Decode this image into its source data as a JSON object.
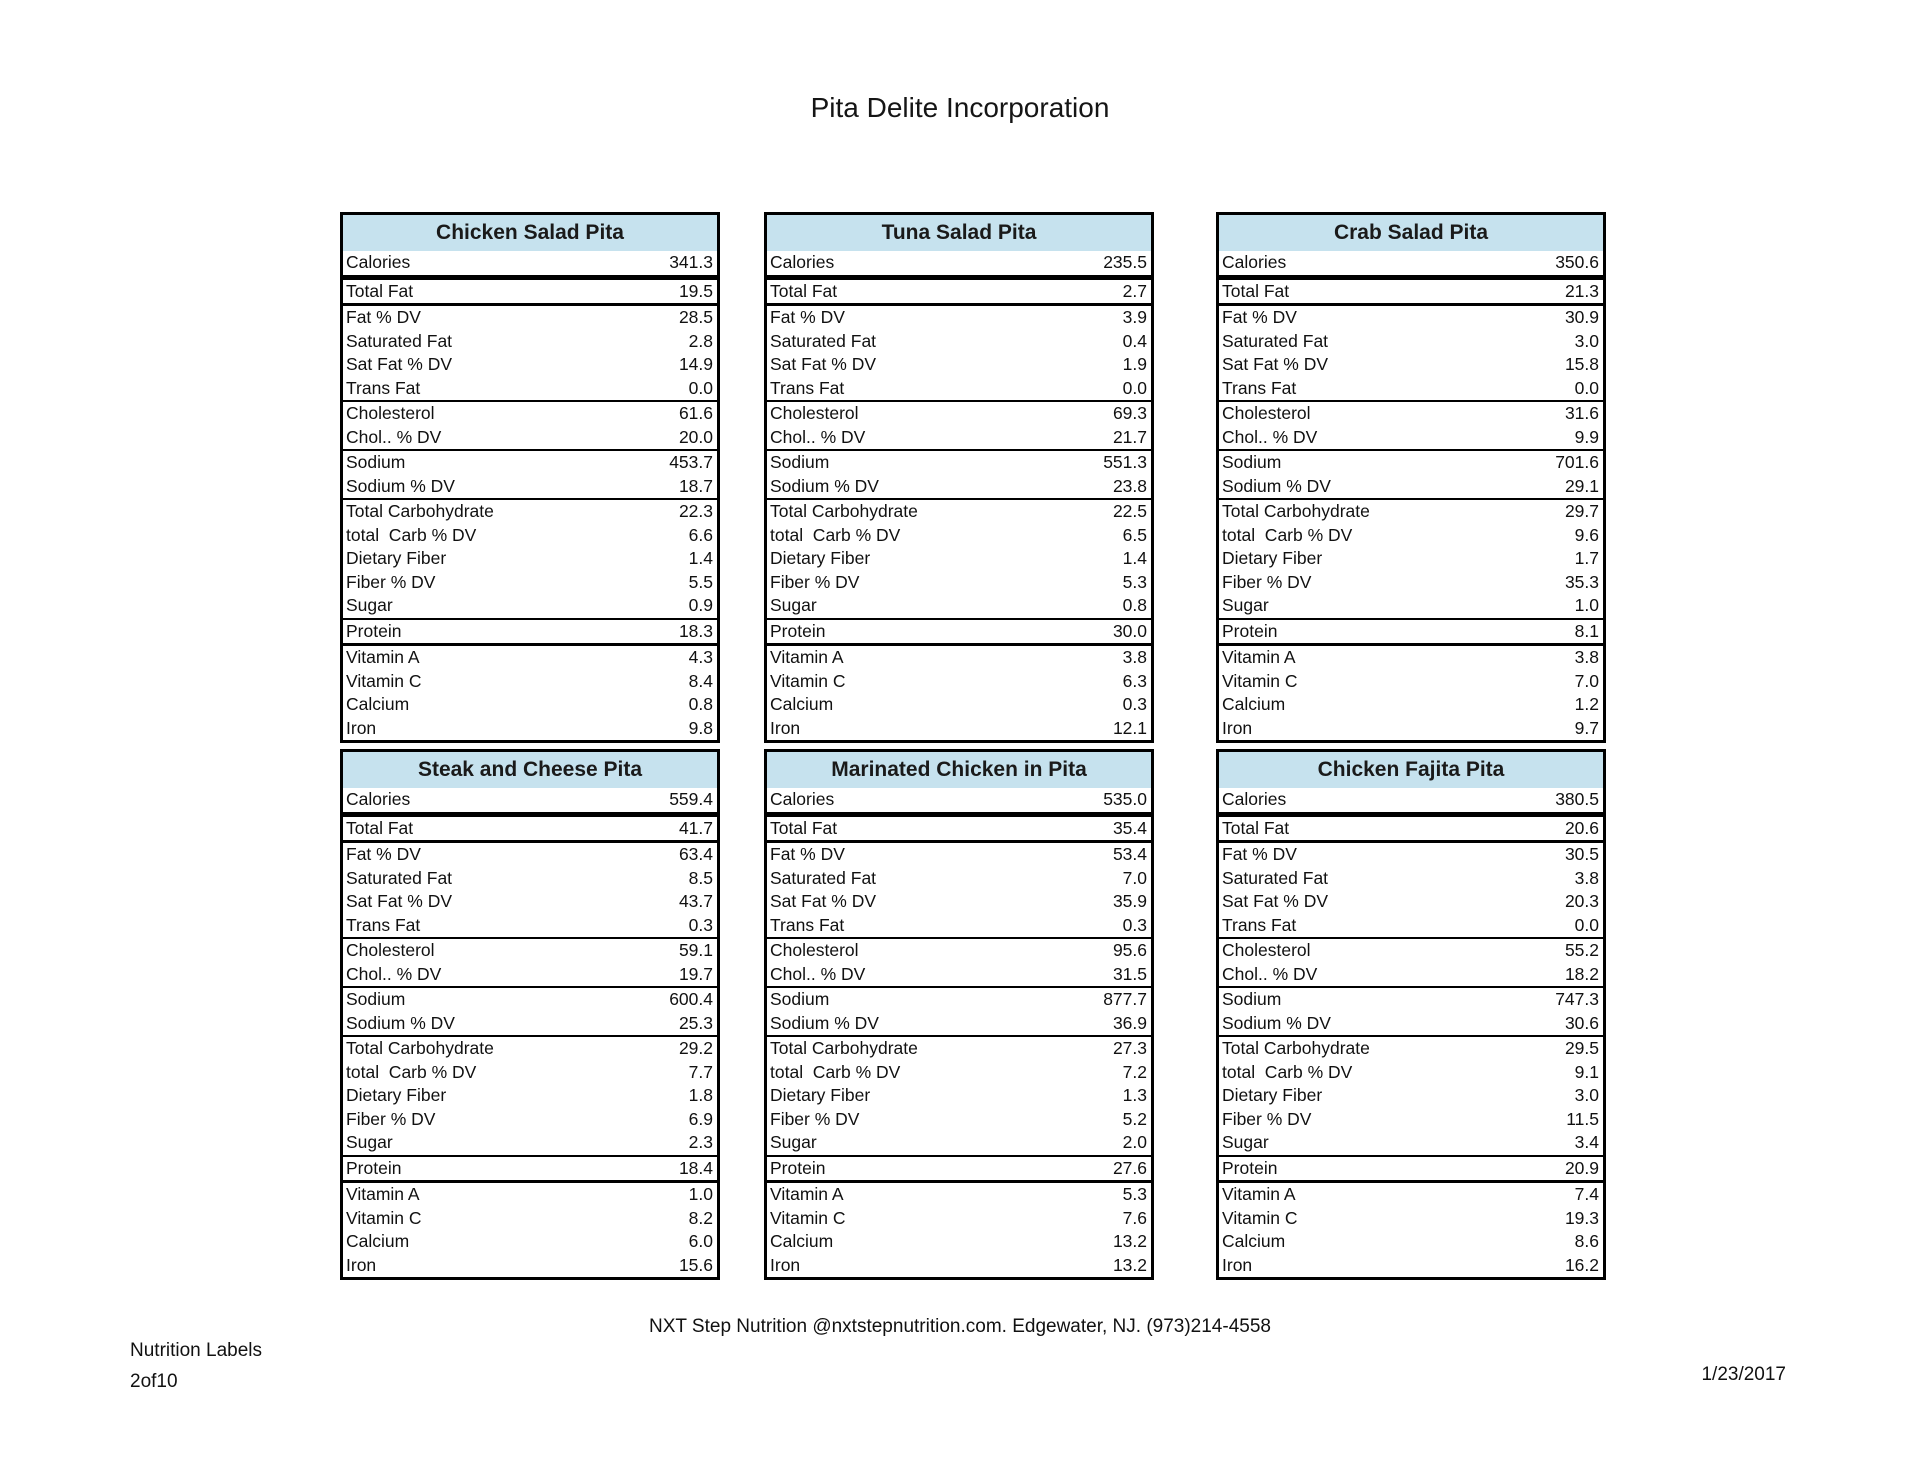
{
  "page": {
    "title": "Pita Delite Incorporation",
    "footer_center": "NXT Step Nutrition @nxtstepnutrition.com. Edgewater, NJ. (973)214-4558",
    "footer_left_line1": "Nutrition Labels",
    "footer_left_line2": "2of10",
    "footer_right_date": "1/23/2017"
  },
  "colors": {
    "table_header_bg": "#c6e2ee",
    "table_border": "#000000",
    "text": "#111111"
  },
  "row_labels": [
    "Calories",
    "Total Fat",
    "Fat % DV",
    "Saturated Fat",
    "Sat Fat % DV",
    "Trans Fat",
    "Cholesterol",
    "Chol.. % DV",
    "Sodium",
    "Sodium % DV",
    "Total Carbohydrate",
    "total  Carb % DV",
    "Dietary Fiber",
    "Fiber % DV",
    "Sugar",
    "Protein",
    "Vitamin A",
    "Vitamin C",
    "Calcium",
    "Iron"
  ],
  "tables": [
    {
      "title": "Chicken Salad Pita",
      "values": [
        "341.3",
        "19.5",
        "28.5",
        "2.8",
        "14.9",
        "0.0",
        "61.6",
        "20.0",
        "453.7",
        "18.7",
        "22.3",
        "6.6",
        "1.4",
        "5.5",
        "0.9",
        "18.3",
        "4.3",
        "8.4",
        "0.8",
        "9.8"
      ]
    },
    {
      "title": "Tuna Salad Pita",
      "values": [
        "235.5",
        "2.7",
        "3.9",
        "0.4",
        "1.9",
        "0.0",
        "69.3",
        "21.7",
        "551.3",
        "23.8",
        "22.5",
        "6.5",
        "1.4",
        "5.3",
        "0.8",
        "30.0",
        "3.8",
        "6.3",
        "0.3",
        "12.1"
      ]
    },
    {
      "title": "Crab Salad Pita",
      "values": [
        "350.6",
        "21.3",
        "30.9",
        "3.0",
        "15.8",
        "0.0",
        "31.6",
        "9.9",
        "701.6",
        "29.1",
        "29.7",
        "9.6",
        "1.7",
        "35.3",
        "1.0",
        "8.1",
        "3.8",
        "7.0",
        "1.2",
        "9.7"
      ]
    },
    {
      "title": "Steak and Cheese Pita",
      "values": [
        "559.4",
        "41.7",
        "63.4",
        "8.5",
        "43.7",
        "0.3",
        "59.1",
        "19.7",
        "600.4",
        "25.3",
        "29.2",
        "7.7",
        "1.8",
        "6.9",
        "2.3",
        "18.4",
        "1.0",
        "8.2",
        "6.0",
        "15.6"
      ]
    },
    {
      "title": "Marinated Chicken in Pita",
      "values": [
        "535.0",
        "35.4",
        "53.4",
        "7.0",
        "35.9",
        "0.3",
        "95.6",
        "31.5",
        "877.7",
        "36.9",
        "27.3",
        "7.2",
        "1.3",
        "5.2",
        "2.0",
        "27.6",
        "5.3",
        "7.6",
        "13.2",
        "13.2"
      ]
    },
    {
      "title": "Chicken Fajita Pita",
      "values": [
        "380.5",
        "20.6",
        "30.5",
        "3.8",
        "20.3",
        "0.0",
        "55.2",
        "18.2",
        "747.3",
        "30.6",
        "29.5",
        "9.1",
        "3.0",
        "11.5",
        "3.4",
        "20.9",
        "7.4",
        "19.3",
        "8.6",
        "16.2"
      ]
    }
  ]
}
